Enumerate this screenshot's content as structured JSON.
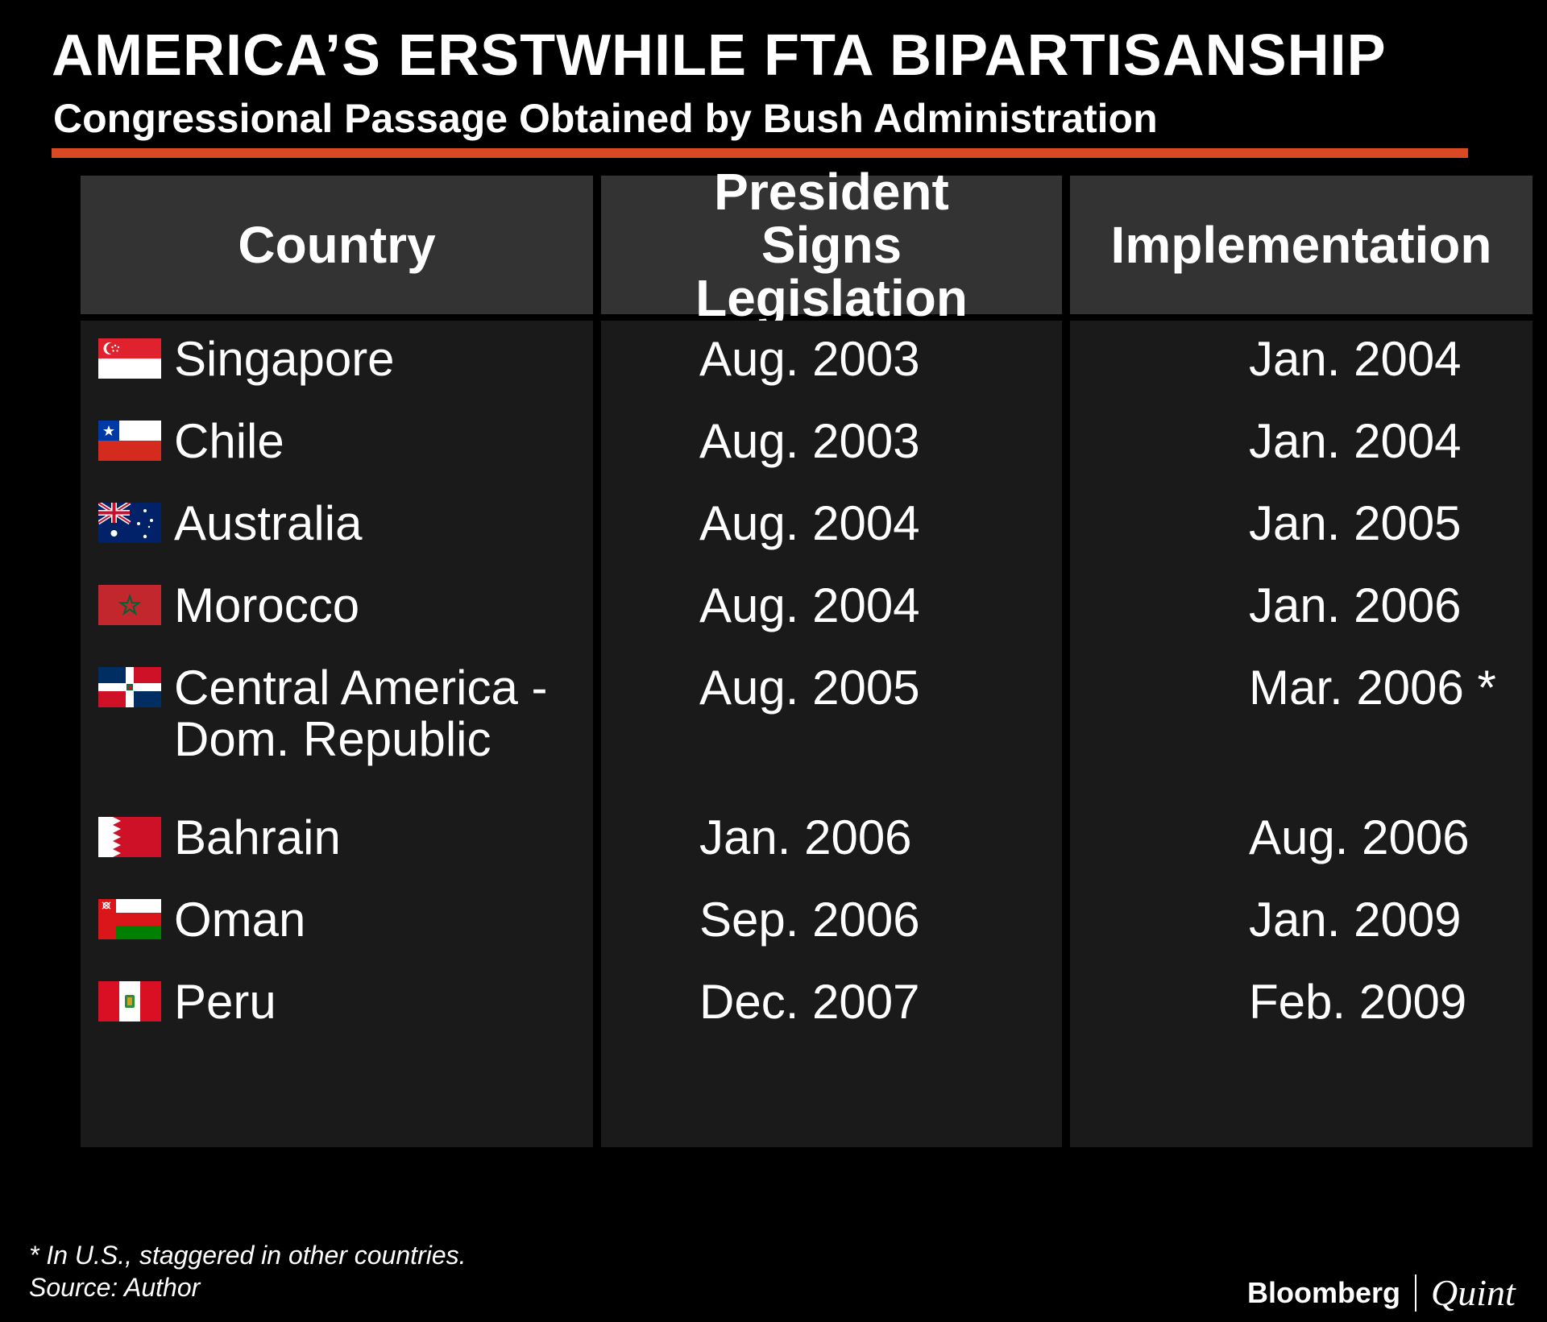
{
  "title": "AMERICA’S ERSTWHILE FTA BIPARTISANSHIP",
  "subtitle": "Congressional Passage Obtained by Bush Administration",
  "colors": {
    "background": "#000000",
    "accent_rule": "#d94a24",
    "header_cell": "#333333",
    "body_cell": "#1a1a1a",
    "text": "#ffffff"
  },
  "chart_data": {
    "type": "table",
    "columns": [
      "Country",
      "President Signs Legislation",
      "Implementation"
    ],
    "rows": [
      {
        "country": "Singapore",
        "flag": "singapore-flag",
        "signed": "Aug. 2003",
        "implemented": "Jan. 2004"
      },
      {
        "country": "Chile",
        "flag": "chile-flag",
        "signed": "Aug. 2003",
        "implemented": "Jan. 2004"
      },
      {
        "country": "Australia",
        "flag": "australia-flag",
        "signed": "Aug. 2004",
        "implemented": "Jan. 2005"
      },
      {
        "country": "Morocco",
        "flag": "morocco-flag",
        "signed": "Aug. 2004",
        "implemented": "Jan. 2006"
      },
      {
        "country": "Central America - Dom. Republic",
        "flag": "dominican-republic-flag",
        "signed": "Aug. 2005",
        "implemented": "Mar. 2006 *"
      },
      {
        "country": "Bahrain",
        "flag": "bahrain-flag",
        "signed": "Jan. 2006",
        "implemented": "Aug. 2006"
      },
      {
        "country": "Oman",
        "flag": "oman-flag",
        "signed": "Sep. 2006",
        "implemented": "Jan. 2009"
      },
      {
        "country": "Peru",
        "flag": "peru-flag",
        "signed": "Dec. 2007",
        "implemented": "Feb. 2009"
      }
    ]
  },
  "footnote": "* In U.S., staggered in other countries.",
  "source": "Source: Author",
  "brand": {
    "primary": "Bloomberg",
    "secondary": "Quint"
  }
}
